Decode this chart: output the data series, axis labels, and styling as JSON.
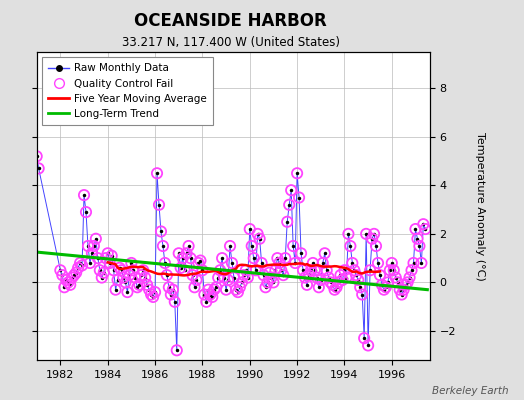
{
  "title": "OCEANSIDE HARBOR",
  "subtitle": "33.217 N, 117.400 W (United States)",
  "ylabel": "Temperature Anomaly (°C)",
  "credit": "Berkeley Earth",
  "xlim": [
    1981.0,
    1997.6
  ],
  "ylim": [
    -3.2,
    9.5
  ],
  "yticks": [
    -2,
    0,
    2,
    4,
    6,
    8
  ],
  "xticks": [
    1982,
    1984,
    1986,
    1988,
    1990,
    1992,
    1994,
    1996
  ],
  "bg_color": "#e0e0e0",
  "plot_bg": "#ffffff",
  "raw_color": "#4444ff",
  "ma_color": "#ff0000",
  "trend_color": "#00bb00",
  "qc_color": "#ff44ff",
  "raw_data_x": [
    1981.0,
    1981.083,
    1982.0,
    1982.083,
    1982.167,
    1982.25,
    1982.333,
    1982.417,
    1982.5,
    1982.583,
    1982.667,
    1982.75,
    1982.833,
    1982.917,
    1983.0,
    1983.083,
    1983.167,
    1983.25,
    1983.333,
    1983.417,
    1983.5,
    1983.583,
    1983.667,
    1983.75,
    1983.833,
    1983.917,
    1984.0,
    1984.083,
    1984.167,
    1984.25,
    1984.333,
    1984.417,
    1984.5,
    1984.583,
    1984.667,
    1984.75,
    1984.833,
    1984.917,
    1985.0,
    1985.083,
    1985.167,
    1985.25,
    1985.333,
    1985.417,
    1985.5,
    1985.583,
    1985.667,
    1985.75,
    1985.833,
    1985.917,
    1986.0,
    1986.083,
    1986.167,
    1986.25,
    1986.333,
    1986.417,
    1986.5,
    1986.583,
    1986.667,
    1986.75,
    1986.833,
    1986.917,
    1987.0,
    1987.083,
    1987.167,
    1987.25,
    1987.333,
    1987.417,
    1987.5,
    1987.583,
    1987.667,
    1987.75,
    1987.833,
    1987.917,
    1988.0,
    1988.083,
    1988.167,
    1988.25,
    1988.333,
    1988.417,
    1988.5,
    1988.583,
    1988.667,
    1988.75,
    1988.833,
    1988.917,
    1989.0,
    1989.083,
    1989.167,
    1989.25,
    1989.333,
    1989.417,
    1989.5,
    1989.583,
    1989.667,
    1989.75,
    1989.833,
    1989.917,
    1990.0,
    1990.083,
    1990.167,
    1990.25,
    1990.333,
    1990.417,
    1990.5,
    1990.583,
    1990.667,
    1990.75,
    1990.833,
    1990.917,
    1991.0,
    1991.083,
    1991.167,
    1991.25,
    1991.333,
    1991.417,
    1991.5,
    1991.583,
    1991.667,
    1991.75,
    1991.833,
    1991.917,
    1992.0,
    1992.083,
    1992.167,
    1992.25,
    1992.333,
    1992.417,
    1992.5,
    1992.583,
    1992.667,
    1992.75,
    1992.833,
    1992.917,
    1993.0,
    1993.083,
    1993.167,
    1993.25,
    1993.333,
    1993.417,
    1993.5,
    1993.583,
    1993.667,
    1993.75,
    1993.833,
    1993.917,
    1994.0,
    1994.083,
    1994.167,
    1994.25,
    1994.333,
    1994.417,
    1994.5,
    1994.583,
    1994.667,
    1994.75,
    1994.833,
    1994.917,
    1995.0,
    1995.083,
    1995.167,
    1995.25,
    1995.333,
    1995.417,
    1995.5,
    1995.583,
    1995.667,
    1995.75,
    1995.833,
    1995.917,
    1996.0,
    1996.083,
    1996.167,
    1996.25,
    1996.333,
    1996.417,
    1996.5,
    1996.583,
    1996.667,
    1996.75,
    1996.833,
    1996.917,
    1997.0,
    1997.083,
    1997.167,
    1997.25,
    1997.333,
    1997.417
  ],
  "raw_data_y": [
    5.2,
    4.7,
    0.5,
    0.3,
    -0.2,
    0.1,
    0.0,
    -0.1,
    0.2,
    0.3,
    0.4,
    0.6,
    0.8,
    0.7,
    3.6,
    2.9,
    1.5,
    0.8,
    1.2,
    1.5,
    1.8,
    1.0,
    0.5,
    0.2,
    0.4,
    1.0,
    1.2,
    0.8,
    1.1,
    0.5,
    -0.3,
    0.1,
    0.6,
    0.5,
    0.2,
    0.0,
    -0.4,
    0.3,
    0.8,
    0.5,
    0.2,
    -0.2,
    -0.1,
    0.3,
    0.5,
    0.2,
    -0.1,
    -0.3,
    -0.5,
    -0.6,
    -0.4,
    4.5,
    3.2,
    2.1,
    1.5,
    0.8,
    0.3,
    -0.2,
    -0.5,
    -0.3,
    -0.8,
    -2.8,
    1.2,
    0.6,
    1.0,
    0.5,
    1.2,
    1.5,
    1.0,
    0.3,
    -0.2,
    0.1,
    0.8,
    0.9,
    0.5,
    -0.5,
    -0.8,
    -0.3,
    -0.5,
    -0.6,
    -0.3,
    -0.2,
    0.2,
    0.5,
    1.0,
    0.2,
    -0.3,
    0.1,
    1.5,
    0.8,
    0.2,
    -0.3,
    -0.4,
    -0.2,
    0.0,
    0.3,
    0.5,
    0.2,
    2.2,
    1.5,
    1.0,
    0.5,
    2.0,
    1.8,
    0.8,
    0.3,
    -0.2,
    0.0,
    0.4,
    0.2,
    0.0,
    0.5,
    1.0,
    0.8,
    0.5,
    0.3,
    1.0,
    2.5,
    3.2,
    3.8,
    1.5,
    0.8,
    4.5,
    3.5,
    1.2,
    0.5,
    0.2,
    -0.1,
    0.3,
    0.5,
    0.8,
    0.5,
    0.2,
    -0.2,
    0.1,
    0.8,
    1.2,
    0.5,
    0.2,
    0.0,
    -0.1,
    -0.3,
    -0.2,
    0.0,
    0.3,
    0.1,
    0.5,
    0.2,
    2.0,
    1.5,
    0.8,
    0.5,
    0.3,
    0.1,
    -0.2,
    -0.5,
    -2.3,
    2.0,
    -2.6,
    0.5,
    1.8,
    2.0,
    1.5,
    0.8,
    0.3,
    -0.1,
    -0.3,
    -0.2,
    0.0,
    0.5,
    0.8,
    0.5,
    0.2,
    0.0,
    -0.3,
    -0.5,
    -0.3,
    -0.1,
    0.0,
    0.2,
    0.5,
    0.8,
    2.2,
    1.8,
    1.5,
    0.8,
    2.4,
    2.2
  ],
  "trend_x": [
    1981.0,
    1997.5
  ],
  "trend_y": [
    1.25,
    -0.3
  ]
}
